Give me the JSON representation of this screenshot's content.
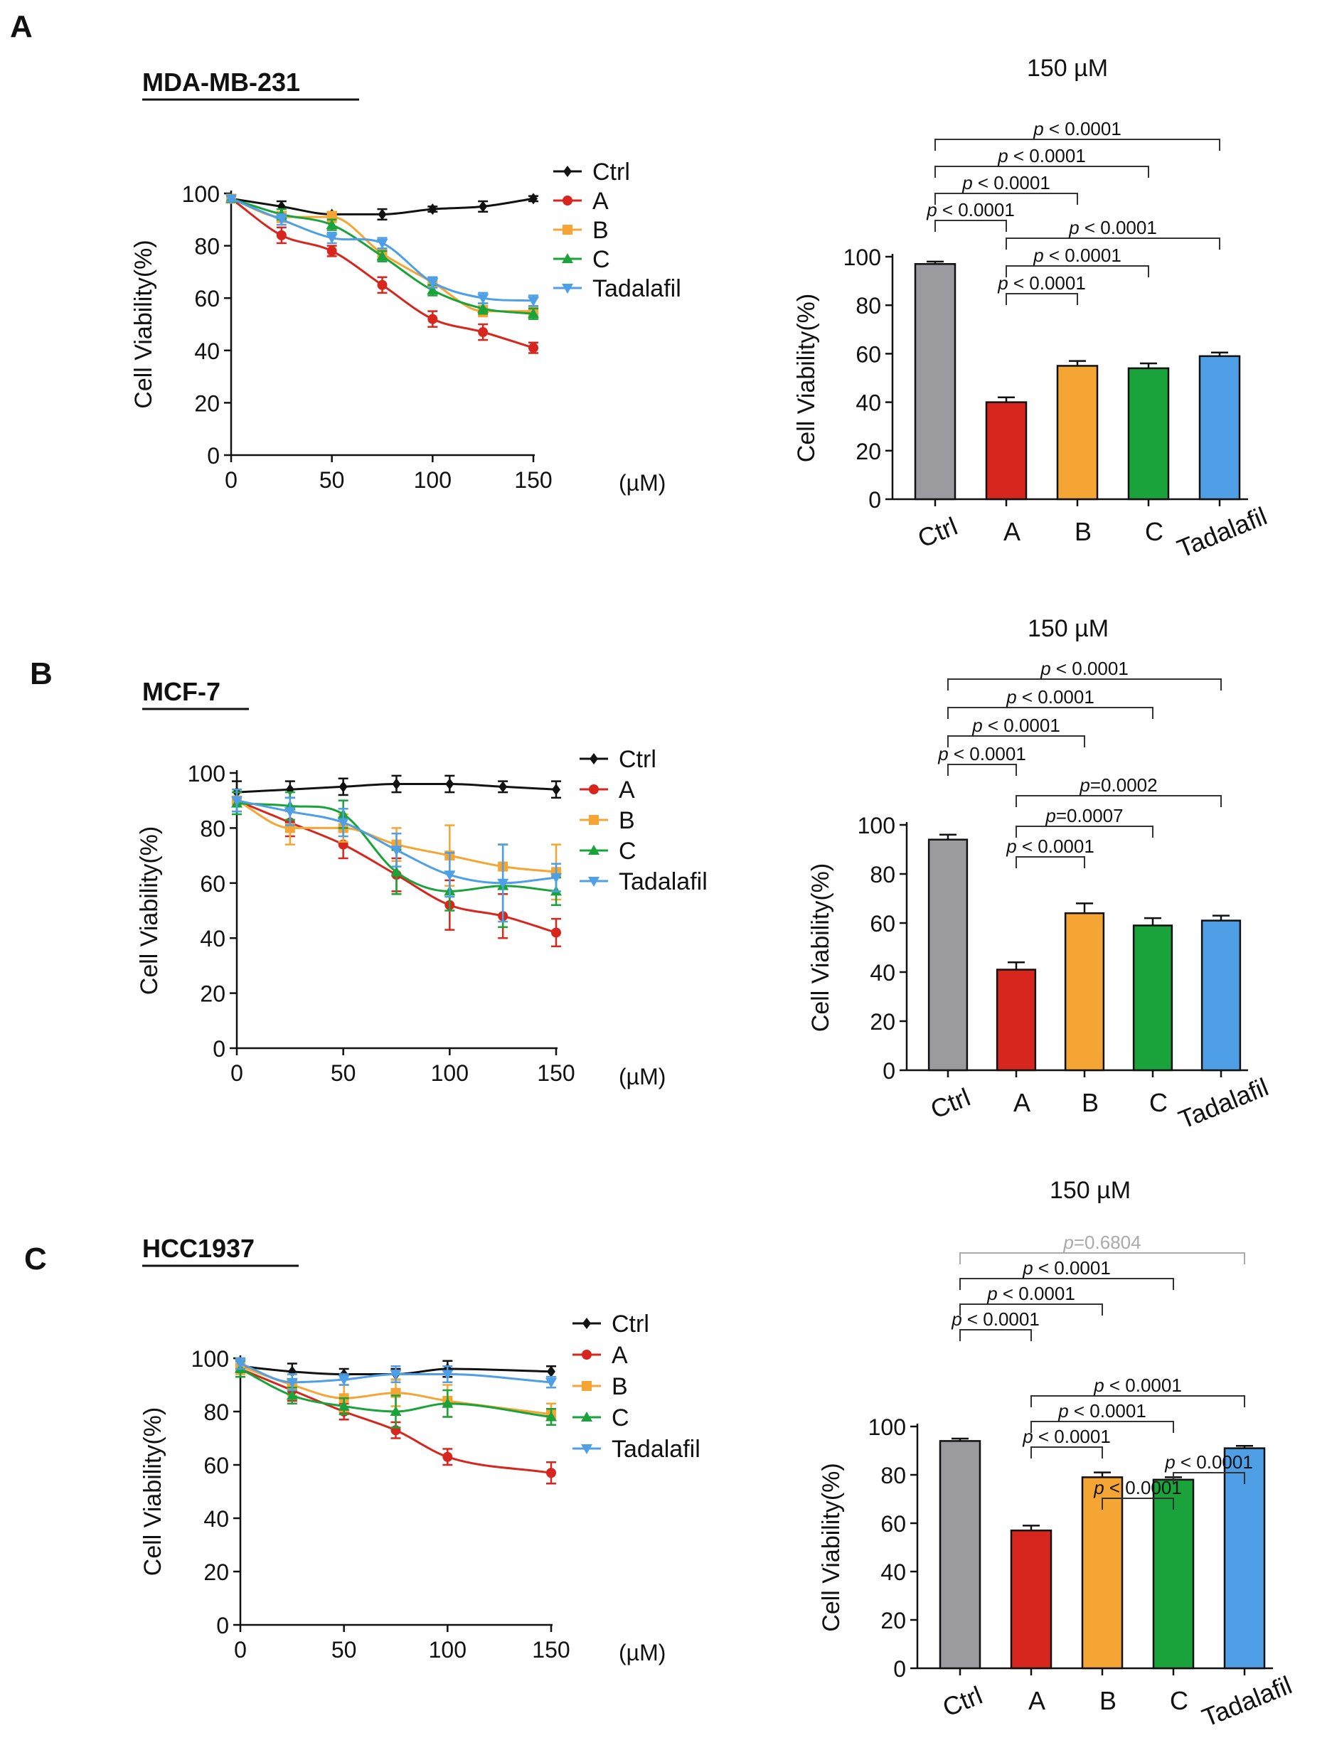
{
  "panels": [
    {
      "letter": "A",
      "cell_line": "MDA-MB-231",
      "line_chart": {
        "type": "line",
        "x": [
          0,
          25,
          50,
          75,
          100,
          125,
          150
        ],
        "x_unit": "(µM)",
        "ylabel": "Cell Viability(%)",
        "xlim": [
          0,
          150
        ],
        "ylim": [
          0,
          100
        ],
        "xticks": [
          0,
          50,
          100,
          150
        ],
        "yticks": [
          0,
          20,
          40,
          60,
          80,
          100
        ],
        "series": [
          {
            "name": "Ctrl",
            "color": "#111111",
            "marker": "diamond",
            "values": [
              98,
              95,
              92,
              92,
              94,
              95,
              98
            ],
            "errors": [
              1,
              2,
              1,
              2,
              1,
              2,
              1
            ]
          },
          {
            "name": "A",
            "color": "#d7261e",
            "marker": "circle",
            "values": [
              98,
              84,
              78,
              65,
              52,
              47,
              41
            ],
            "errors": [
              1,
              3,
              2,
              3,
              3,
              3,
              2
            ]
          },
          {
            "name": "B",
            "color": "#f5a533",
            "marker": "square",
            "values": [
              98,
              91,
              91,
              77,
              66,
              55,
              55
            ],
            "errors": [
              1,
              2,
              2,
              2,
              2,
              2,
              2
            ]
          },
          {
            "name": "C",
            "color": "#1aa33a",
            "marker": "triangle-up",
            "values": [
              98,
              92,
              88,
              76,
              63,
              56,
              54
            ],
            "errors": [
              1,
              2,
              2,
              2,
              2,
              2,
              2
            ]
          },
          {
            "name": "Tadalafil",
            "color": "#4f9fe6",
            "marker": "triangle-down",
            "values": [
              98,
              90,
              83,
              81,
              66,
              60,
              59
            ],
            "errors": [
              1,
              2,
              2,
              2,
              2,
              2,
              2
            ]
          }
        ]
      },
      "bar_chart": {
        "type": "bar",
        "title": "150 µM",
        "ylabel": "Cell Viability(%)",
        "ylim": [
          0,
          100
        ],
        "yticks": [
          0,
          20,
          40,
          60,
          80,
          100
        ],
        "categories": [
          "Ctrl",
          "A",
          "B",
          "C",
          "Tadalafil"
        ],
        "values": [
          97,
          40,
          55,
          54,
          59
        ],
        "errors": [
          1,
          2,
          2,
          2,
          1.5
        ],
        "colors": [
          "#9b9b9f",
          "#d7261e",
          "#f5a533",
          "#1aa33a",
          "#4f9fe6"
        ],
        "comparisons": [
          {
            "from": 0,
            "to": 4,
            "label": "p < 0.0001",
            "color": "#111111"
          },
          {
            "from": 0,
            "to": 3,
            "label": "p < 0.0001",
            "color": "#111111"
          },
          {
            "from": 0,
            "to": 2,
            "label": "p < 0.0001",
            "color": "#111111"
          },
          {
            "from": 0,
            "to": 1,
            "label": "p < 0.0001",
            "color": "#111111"
          },
          {
            "from": 1,
            "to": 4,
            "label": "p < 0.0001",
            "color": "#111111"
          },
          {
            "from": 1,
            "to": 3,
            "label": "p < 0.0001",
            "color": "#111111"
          },
          {
            "from": 1,
            "to": 2,
            "label": "p < 0.0001",
            "color": "#111111"
          }
        ]
      }
    },
    {
      "letter": "B",
      "cell_line": "MCF-7",
      "line_chart": {
        "type": "line",
        "x": [
          0,
          25,
          50,
          75,
          100,
          125,
          150
        ],
        "x_unit": "(µM)",
        "ylabel": "Cell Viability(%)",
        "xlim": [
          0,
          150
        ],
        "ylim": [
          0,
          100
        ],
        "xticks": [
          0,
          50,
          100,
          150
        ],
        "yticks": [
          0,
          20,
          40,
          60,
          80,
          100
        ],
        "series": [
          {
            "name": "Ctrl",
            "color": "#111111",
            "marker": "diamond",
            "values": [
              93,
              94,
              95,
              96,
              96,
              95,
              94
            ],
            "errors": [
              4,
              3,
              3,
              3,
              3,
              2,
              3
            ]
          },
          {
            "name": "A",
            "color": "#d7261e",
            "marker": "circle",
            "values": [
              90,
              82,
              74,
              63,
              52,
              48,
              42
            ],
            "errors": [
              4,
              5,
              5,
              6,
              9,
              8,
              5
            ]
          },
          {
            "name": "B",
            "color": "#f5a533",
            "marker": "square",
            "values": [
              90,
              80,
              80,
              74,
              70,
              66,
              64
            ],
            "errors": [
              4,
              6,
              5,
              6,
              11,
              8,
              10
            ]
          },
          {
            "name": "C",
            "color": "#1aa33a",
            "marker": "triangle-up",
            "values": [
              89,
              88,
              85,
              64,
              57,
              59,
              57
            ],
            "errors": [
              4,
              5,
              5,
              8,
              7,
              15,
              5
            ]
          },
          {
            "name": "Tadalafil",
            "color": "#4f9fe6",
            "marker": "triangle-down",
            "values": [
              90,
              86,
              82,
              72,
              63,
              60,
              62
            ],
            "errors": [
              4,
              5,
              5,
              6,
              8,
              14,
              5
            ]
          }
        ]
      },
      "bar_chart": {
        "type": "bar",
        "title": "150 µM",
        "ylabel": "Cell Viability(%)",
        "ylim": [
          0,
          100
        ],
        "yticks": [
          0,
          20,
          40,
          60,
          80,
          100
        ],
        "categories": [
          "Ctrl",
          "A",
          "B",
          "C",
          "Tadalafil"
        ],
        "values": [
          94,
          41,
          64,
          59,
          61
        ],
        "errors": [
          2,
          3,
          4,
          3,
          2
        ],
        "colors": [
          "#9b9b9f",
          "#d7261e",
          "#f5a533",
          "#1aa33a",
          "#4f9fe6"
        ],
        "comparisons": [
          {
            "from": 0,
            "to": 4,
            "label": "p < 0.0001",
            "color": "#111111"
          },
          {
            "from": 0,
            "to": 3,
            "label": "p < 0.0001",
            "color": "#111111"
          },
          {
            "from": 0,
            "to": 2,
            "label": "p < 0.0001",
            "color": "#111111"
          },
          {
            "from": 0,
            "to": 1,
            "label": "p < 0.0001",
            "color": "#111111"
          },
          {
            "from": 1,
            "to": 4,
            "label": "p=0.0002",
            "color": "#111111"
          },
          {
            "from": 1,
            "to": 3,
            "label": "p=0.0007",
            "color": "#111111"
          },
          {
            "from": 1,
            "to": 2,
            "label": "p < 0.0001",
            "color": "#111111"
          }
        ]
      }
    },
    {
      "letter": "C",
      "cell_line": "HCC1937",
      "line_chart": {
        "type": "line",
        "x": [
          0,
          25,
          50,
          75,
          100,
          150
        ],
        "x_unit": "(µM)",
        "ylabel": "Cell Viability(%)",
        "xlim": [
          0,
          150
        ],
        "ylim": [
          0,
          100
        ],
        "xticks": [
          0,
          50,
          100,
          150
        ],
        "yticks": [
          0,
          20,
          40,
          60,
          80,
          100
        ],
        "series": [
          {
            "name": "Ctrl",
            "color": "#111111",
            "marker": "diamond",
            "values": [
              97,
              95,
              94,
              94,
              96,
              95
            ],
            "errors": [
              2,
              3,
              2,
              2,
              3,
              2
            ]
          },
          {
            "name": "A",
            "color": "#d7261e",
            "marker": "circle",
            "values": [
              96,
              88,
              80,
              73,
              63,
              57
            ],
            "errors": [
              3,
              4,
              3,
              3,
              3,
              4
            ]
          },
          {
            "name": "B",
            "color": "#f5a533",
            "marker": "square",
            "values": [
              97,
              90,
              85,
              87,
              84,
              79
            ],
            "errors": [
              3,
              4,
              5,
              5,
              6,
              4
            ]
          },
          {
            "name": "C",
            "color": "#1aa33a",
            "marker": "triangle-up",
            "values": [
              96,
              86,
              82,
              80,
              83,
              78
            ],
            "errors": [
              3,
              3,
              3,
              6,
              5,
              3
            ]
          },
          {
            "name": "Tadalafil",
            "color": "#4f9fe6",
            "marker": "triangle-down",
            "values": [
              98,
              91,
              92,
              94,
              94,
              91
            ],
            "errors": [
              2,
              3,
              2,
              3,
              3,
              2
            ]
          }
        ]
      },
      "bar_chart": {
        "type": "bar",
        "title": "150 µM",
        "ylabel": "Cell Viability(%)",
        "ylim": [
          0,
          100
        ],
        "yticks": [
          0,
          20,
          40,
          60,
          80,
          100
        ],
        "categories": [
          "Ctrl",
          "A",
          "B",
          "C",
          "Tadalafil"
        ],
        "values": [
          94,
          57,
          79,
          78,
          91
        ],
        "errors": [
          1,
          2,
          2,
          1,
          1
        ],
        "colors": [
          "#9b9b9f",
          "#d7261e",
          "#f5a533",
          "#1aa33a",
          "#4f9fe6"
        ],
        "comparisons": [
          {
            "from": 0,
            "to": 4,
            "label": "p=0.6804",
            "color": "#aaaaaa"
          },
          {
            "from": 0,
            "to": 3,
            "label": "p < 0.0001",
            "color": "#111111"
          },
          {
            "from": 0,
            "to": 2,
            "label": "p < 0.0001",
            "color": "#111111"
          },
          {
            "from": 0,
            "to": 1,
            "label": "p < 0.0001",
            "color": "#111111"
          },
          {
            "from": 1,
            "to": 4,
            "label": "p < 0.0001",
            "color": "#111111"
          },
          {
            "from": 1,
            "to": 3,
            "label": "p < 0.0001",
            "color": "#111111"
          },
          {
            "from": 1,
            "to": 2,
            "label": "p < 0.0001",
            "color": "#111111"
          },
          {
            "from": 3,
            "to": 4,
            "label": "p < 0.0001",
            "color": "#111111"
          },
          {
            "from": 2,
            "to": 3,
            "label": "p < 0.0001",
            "color": "#111111"
          }
        ]
      }
    }
  ]
}
